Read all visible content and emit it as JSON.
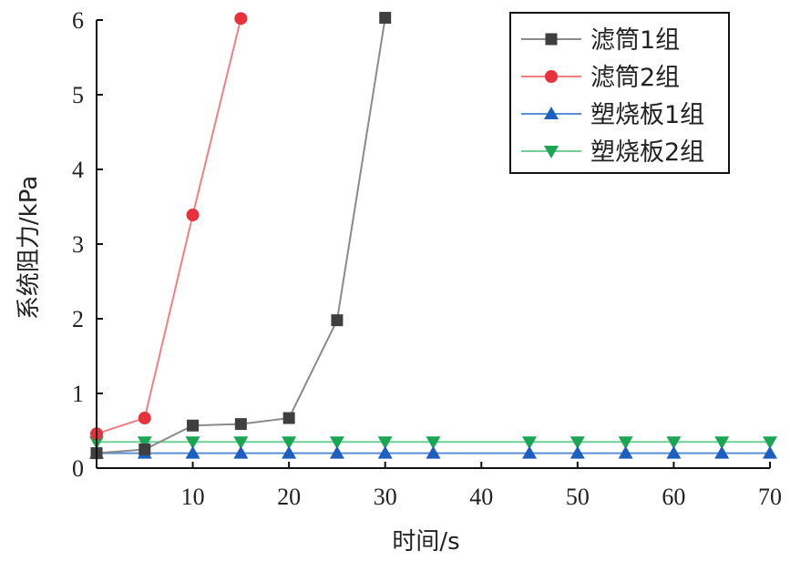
{
  "chart_data": {
    "type": "line",
    "xlabel": "时间/s",
    "ylabel": "系统阻力/kPa",
    "xlim": [
      0,
      70
    ],
    "ylim": [
      0,
      6
    ],
    "xticks": [
      10,
      20,
      30,
      40,
      50,
      60,
      70
    ],
    "yticks": [
      0,
      1,
      2,
      3,
      4,
      5,
      6
    ],
    "grid": false,
    "legend_position": "top-right",
    "series": [
      {
        "name": "滤筒1组",
        "color": "#8a8a8a",
        "marker_color": "#3f3f3f",
        "marker": "square",
        "x": [
          0,
          5,
          10,
          15,
          20,
          25,
          30
        ],
        "y": [
          0.2,
          0.25,
          0.57,
          0.59,
          0.67,
          1.98,
          6.03
        ]
      },
      {
        "name": "滤筒2组",
        "color": "#f08080",
        "marker_color": "#e8313a",
        "marker": "circle",
        "x": [
          0,
          5,
          10,
          15
        ],
        "y": [
          0.46,
          0.67,
          3.39,
          6.02
        ]
      },
      {
        "name": "塑烧板1组",
        "color": "#5a8fd6",
        "marker_color": "#1d5fc0",
        "marker": "triangle-up",
        "x": [
          0,
          5,
          10,
          15,
          20,
          25,
          30,
          35,
          45,
          50,
          55,
          60,
          65,
          70
        ],
        "y": [
          0.2,
          0.2,
          0.2,
          0.2,
          0.2,
          0.2,
          0.2,
          0.2,
          0.2,
          0.2,
          0.2,
          0.2,
          0.2,
          0.2
        ]
      },
      {
        "name": "塑烧板2组",
        "color": "#6fcf97",
        "marker_color": "#1aa653",
        "marker": "triangle-down",
        "x": [
          0,
          5,
          10,
          15,
          20,
          25,
          30,
          35,
          45,
          50,
          55,
          60,
          65,
          70
        ],
        "y": [
          0.35,
          0.35,
          0.35,
          0.35,
          0.35,
          0.35,
          0.35,
          0.35,
          0.35,
          0.35,
          0.35,
          0.35,
          0.35,
          0.35
        ]
      }
    ]
  }
}
